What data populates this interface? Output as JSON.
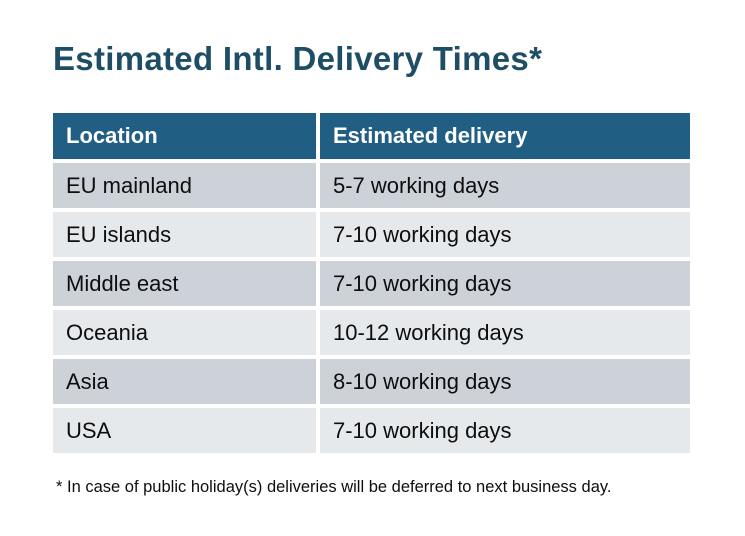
{
  "title": "Estimated Intl. Delivery Times*",
  "colors": {
    "title_text": "#1e4e66",
    "header_bg": "#215e83",
    "header_text": "#ffffff",
    "row_dark": "#cdd1d8",
    "row_light": "#e6e9ec",
    "body_text": "#0e0e0e",
    "page_bg": "#ffffff"
  },
  "table": {
    "headers": [
      "Location",
      "Estimated delivery"
    ],
    "rows": [
      {
        "location": "EU mainland",
        "delivery": "5-7 working days"
      },
      {
        "location": "EU islands",
        "delivery": "7-10 working days"
      },
      {
        "location": "Middle east",
        "delivery": "7-10 working days"
      },
      {
        "location": "Oceania",
        "delivery": "10-12 working days"
      },
      {
        "location": "Asia",
        "delivery": "8-10 working days"
      },
      {
        "location": "USA",
        "delivery": "7-10 working days"
      }
    ]
  },
  "footnote": "* In case of public holiday(s) deliveries will be deferred to next business day."
}
